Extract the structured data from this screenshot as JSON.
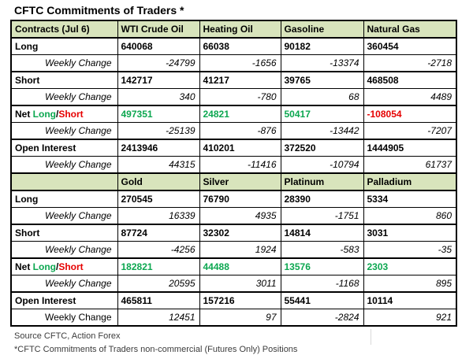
{
  "title": "CFTC Commitments of Traders *",
  "colors": {
    "header_bg": "#d8e4bc",
    "positive": "#0ca750",
    "negative": "#e60000",
    "black": "#000000",
    "footer_text": "#3c3c3c"
  },
  "footer": {
    "line1": "Source CFTC, Action Forex",
    "line2": "*CFTC Commitments of Traders non-commercial (Futures Only) Positions"
  },
  "table": {
    "sections": [
      {
        "header": [
          "Contracts (Jul 6)",
          "WTI Crude Oil",
          "Heating Oil",
          "Gasoline",
          "Natural Gas"
        ],
        "rows": [
          {
            "type": "main",
            "label": "Long",
            "values": [
              "640068",
              "66038",
              "90182",
              "360454"
            ]
          },
          {
            "type": "change",
            "label": "Weekly Change",
            "values": [
              "-24799",
              "-1656",
              "-13374",
              "-2718"
            ]
          },
          {
            "type": "main",
            "label": "Short",
            "values": [
              "142717",
              "41217",
              "39765",
              "468508"
            ]
          },
          {
            "type": "change",
            "label": "Weekly Change",
            "values": [
              "340",
              "-780",
              "68",
              "4489"
            ]
          },
          {
            "type": "net",
            "label_parts": [
              {
                "text": "Net ",
                "color": "black"
              },
              {
                "text": "Long",
                "color": "positive"
              },
              {
                "text": "/",
                "color": "black"
              },
              {
                "text": "Short",
                "color": "negative"
              }
            ],
            "values": [
              "497351",
              "24821",
              "50417",
              "-108054"
            ],
            "value_colors": [
              "positive",
              "positive",
              "positive",
              "negative"
            ]
          },
          {
            "type": "change",
            "label": "Weekly Change",
            "values": [
              "-25139",
              "-876",
              "-13442",
              "-7207"
            ]
          },
          {
            "type": "main",
            "label": "Open Interest",
            "values": [
              "2413946",
              "410201",
              "372520",
              "1444905"
            ]
          },
          {
            "type": "change",
            "label": "Weekly Change",
            "values": [
              "44315",
              "-11416",
              "-10794",
              "61737"
            ]
          }
        ]
      },
      {
        "header": [
          "",
          "Gold",
          "Silver",
          "Platinum",
          "Palladium"
        ],
        "rows": [
          {
            "type": "main",
            "label": "Long",
            "values": [
              "270545",
              "76790",
              "28390",
              "5334"
            ]
          },
          {
            "type": "change",
            "label": "Weekly Change",
            "values": [
              "16339",
              "4935",
              "-1751",
              "860"
            ]
          },
          {
            "type": "main",
            "label": "Short",
            "values": [
              "87724",
              "32302",
              "14814",
              "3031"
            ]
          },
          {
            "type": "change",
            "label": "Weekly Change",
            "values": [
              "-4256",
              "1924",
              "-583",
              "-35"
            ]
          },
          {
            "type": "net",
            "label_parts": [
              {
                "text": "Net ",
                "color": "black"
              },
              {
                "text": "Long",
                "color": "positive"
              },
              {
                "text": "/",
                "color": "black"
              },
              {
                "text": "Short",
                "color": "negative"
              }
            ],
            "values": [
              "182821",
              "44488",
              "13576",
              "2303"
            ],
            "value_colors": [
              "positive",
              "positive",
              "positive",
              "positive"
            ]
          },
          {
            "type": "change",
            "label": "Weekly Change",
            "values": [
              "20595",
              "3011",
              "-1168",
              "895"
            ]
          },
          {
            "type": "main",
            "label": "Open Interest",
            "values": [
              "465811",
              "157216",
              "55441",
              "10114"
            ]
          },
          {
            "type": "change",
            "label": "Weekly Change",
            "label_italic": false,
            "values": [
              "12451",
              "97",
              "-2824",
              "921"
            ]
          }
        ]
      }
    ]
  }
}
